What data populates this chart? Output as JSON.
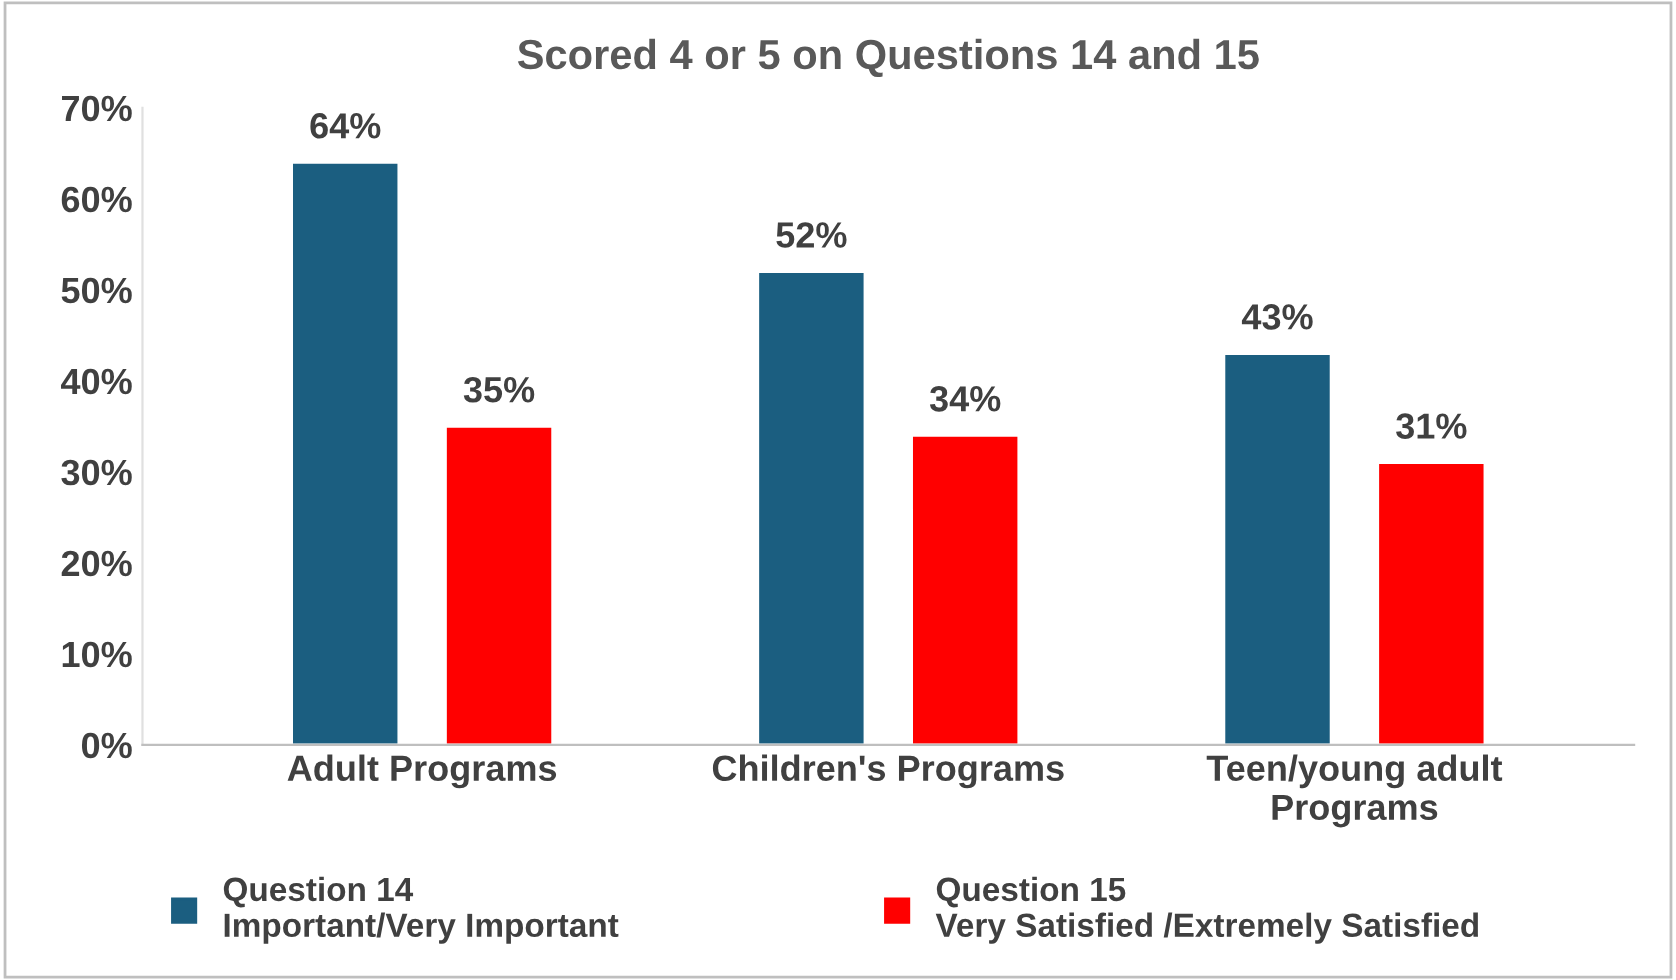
{
  "chart_data": {
    "type": "bar",
    "title": "Scored 4 or 5 on Questions 14 and 15",
    "categories": [
      "Adult Programs",
      "Children's Programs",
      "Teen/young adult\nPrograms"
    ],
    "series": [
      {
        "name": "Question 14\nImportant/Very Important",
        "color": "#1b5e80",
        "values": [
          64,
          52,
          43
        ],
        "value_labels": [
          "64%",
          "52%",
          "43%"
        ]
      },
      {
        "name": "Question 15\nVery Satisfied /Extremely Satisfied",
        "color": "#ff0000",
        "values": [
          35,
          34,
          31
        ],
        "value_labels": [
          "35%",
          "34%",
          "31%"
        ]
      }
    ],
    "ylim": [
      0,
      70
    ],
    "yticks": [
      {
        "value": 0,
        "label": "0%"
      },
      {
        "value": 10,
        "label": "10%"
      },
      {
        "value": 20,
        "label": "20%"
      },
      {
        "value": 30,
        "label": "30%"
      },
      {
        "value": 40,
        "label": "40%"
      },
      {
        "value": 50,
        "label": "50%"
      },
      {
        "value": 60,
        "label": "60%"
      },
      {
        "value": 70,
        "label": "70%"
      }
    ],
    "grid": false,
    "legend": "bottom"
  }
}
